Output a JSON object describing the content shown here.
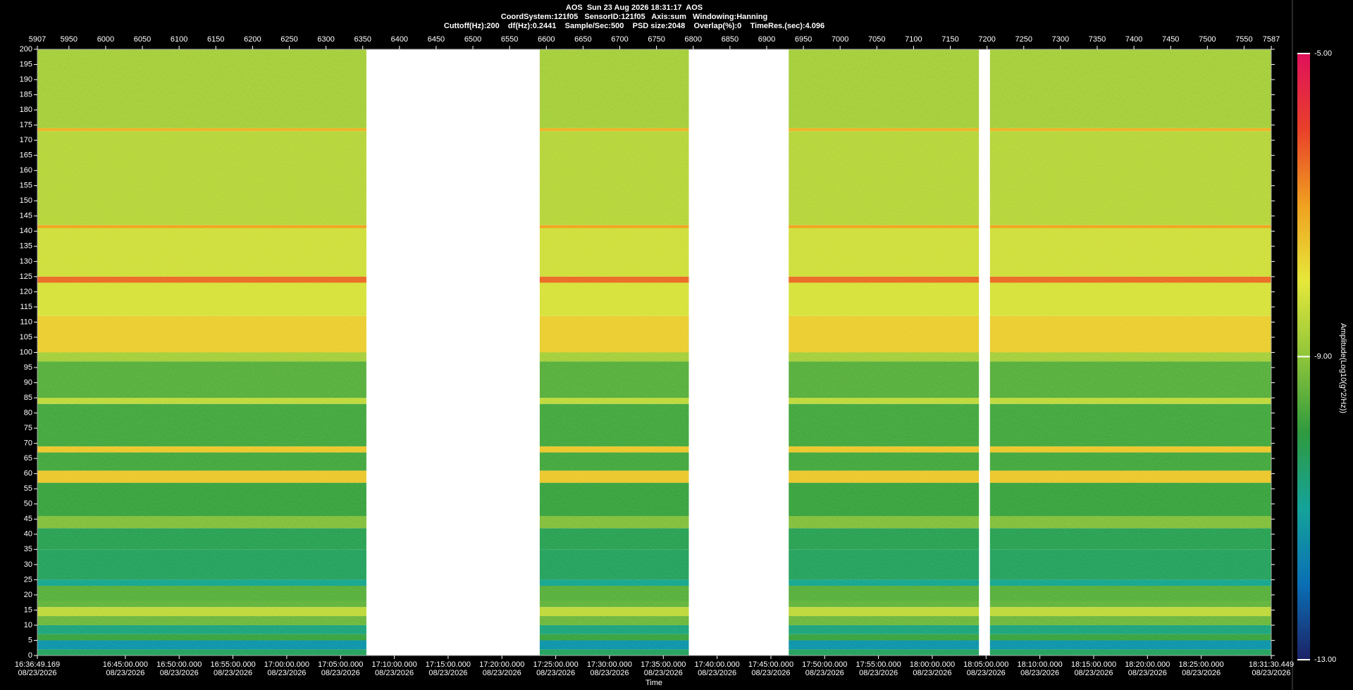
{
  "chart_data": {
    "type": "spectrogram",
    "title": "AOS  Sun 23 Aug 2026 18:31:17  AOS",
    "subtitle": [
      "CoordSystem:121f05   SensorID:121f05   Axis:sum   Windowing:Hanning",
      "Cuttoff(Hz):200    df(Hz):0.2441    Sample/Sec:500    PSD size:2048    Overlap(%):0    TimeRes.(sec):4.096"
    ],
    "x_label": "Time",
    "colorbar_label": "Amplitude(Log10(g^2/Hz))",
    "date": "08/23/2026",
    "ylim": [
      0,
      200
    ],
    "yticks": [
      0,
      5,
      10,
      15,
      20,
      25,
      30,
      35,
      40,
      45,
      50,
      55,
      60,
      65,
      70,
      75,
      80,
      85,
      90,
      95,
      100,
      105,
      110,
      115,
      120,
      125,
      130,
      135,
      140,
      145,
      150,
      155,
      160,
      165,
      170,
      175,
      180,
      185,
      190,
      195,
      200
    ],
    "x2lim": [
      5907,
      7587
    ],
    "x2ticks": [
      5907,
      5950,
      6000,
      6050,
      6100,
      6150,
      6200,
      6250,
      6300,
      6350,
      6400,
      6450,
      6500,
      6550,
      6600,
      6650,
      6700,
      6750,
      6800,
      6850,
      6900,
      6950,
      7000,
      7050,
      7100,
      7150,
      7200,
      7250,
      7300,
      7350,
      7400,
      7450,
      7500,
      7550,
      7587
    ],
    "xlim": [
      59809.169,
      66690.449
    ],
    "xticks": [
      {
        "value": 59809.169,
        "label": "16:36:49.169"
      },
      {
        "value": 60300,
        "label": "16:45:00.000"
      },
      {
        "value": 60600,
        "label": "16:50:00.000"
      },
      {
        "value": 60900,
        "label": "16:55:00.000"
      },
      {
        "value": 61200,
        "label": "17:00:00.000"
      },
      {
        "value": 61500,
        "label": "17:05:00.000"
      },
      {
        "value": 61800,
        "label": "17:10:00.000"
      },
      {
        "value": 62100,
        "label": "17:15:00.000"
      },
      {
        "value": 62400,
        "label": "17:20:00.000"
      },
      {
        "value": 62700,
        "label": "17:25:00.000"
      },
      {
        "value": 63000,
        "label": "17:30:00.000"
      },
      {
        "value": 63300,
        "label": "17:35:00.000"
      },
      {
        "value": 63600,
        "label": "17:40:00.000"
      },
      {
        "value": 63900,
        "label": "17:45:00.000"
      },
      {
        "value": 64200,
        "label": "17:50:00.000"
      },
      {
        "value": 64500,
        "label": "17:55:00.000"
      },
      {
        "value": 64800,
        "label": "18:00:00.000"
      },
      {
        "value": 65100,
        "label": "18:05:00.000"
      },
      {
        "value": 65400,
        "label": "18:10:00.000"
      },
      {
        "value": 65700,
        "label": "18:15:00.000"
      },
      {
        "value": 66000,
        "label": "18:20:00.000"
      },
      {
        "value": 66300,
        "label": "18:25:00.000"
      },
      {
        "value": 66690.449,
        "label": "18:31:30.449"
      }
    ],
    "segments": [
      [
        5907,
        6355
      ],
      [
        6591,
        6794
      ],
      [
        6930,
        7189
      ],
      [
        7204,
        7587
      ]
    ],
    "bands": [
      {
        "from": 0,
        "to": 2,
        "value": -10.3
      },
      {
        "from": 2,
        "to": 5,
        "value": -11.4
      },
      {
        "from": 5,
        "to": 7,
        "value": -9.9
      },
      {
        "from": 7,
        "to": 10,
        "value": -10.6
      },
      {
        "from": 10,
        "to": 13,
        "value": -9.4
      },
      {
        "from": 13,
        "to": 16,
        "value": -8.5
      },
      {
        "from": 16,
        "to": 18,
        "value": -9.5
      },
      {
        "from": 18,
        "to": 23,
        "value": -9.6
      },
      {
        "from": 23,
        "to": 25,
        "value": -10.8
      },
      {
        "from": 25,
        "to": 35,
        "value": -10.3
      },
      {
        "from": 35,
        "to": 42,
        "value": -10.2
      },
      {
        "from": 42,
        "to": 46,
        "value": -9.2
      },
      {
        "from": 46,
        "to": 57,
        "value": -9.9
      },
      {
        "from": 57,
        "to": 61,
        "value": -7.5
      },
      {
        "from": 61,
        "to": 67,
        "value": -9.8
      },
      {
        "from": 67,
        "to": 69,
        "value": -7.5
      },
      {
        "from": 69,
        "to": 83,
        "value": -9.8
      },
      {
        "from": 83,
        "to": 85,
        "value": -8.5
      },
      {
        "from": 85,
        "to": 97,
        "value": -9.6
      },
      {
        "from": 97,
        "to": 100,
        "value": -8.8
      },
      {
        "from": 100,
        "to": 112,
        "value": -7.6
      },
      {
        "from": 112,
        "to": 123,
        "value": -8.2
      },
      {
        "from": 123,
        "to": 125,
        "value": -6.4
      },
      {
        "from": 125,
        "to": 141,
        "value": -8.3
      },
      {
        "from": 141,
        "to": 142,
        "value": -7
      },
      {
        "from": 142,
        "to": 173,
        "value": -8.6
      },
      {
        "from": 173,
        "to": 174,
        "value": -7.2
      },
      {
        "from": 174,
        "to": 200,
        "value": -8.8
      }
    ],
    "clim": [
      -13,
      -5
    ],
    "cticks": [
      {
        "value": -5,
        "label": "-5.00"
      },
      {
        "value": -9,
        "label": "-9.00"
      },
      {
        "value": -13,
        "label": "-13.00"
      }
    ],
    "colorscale": [
      [
        -13,
        "#1c2266"
      ],
      [
        -12,
        "#0a6fb5"
      ],
      [
        -11,
        "#14a39a"
      ],
      [
        -10,
        "#2f9a3e"
      ],
      [
        -9,
        "#8fc53a"
      ],
      [
        -8,
        "#e6e83a"
      ],
      [
        -7,
        "#f0a020"
      ],
      [
        -6,
        "#e8402a"
      ],
      [
        -5,
        "#e0105a"
      ]
    ]
  }
}
